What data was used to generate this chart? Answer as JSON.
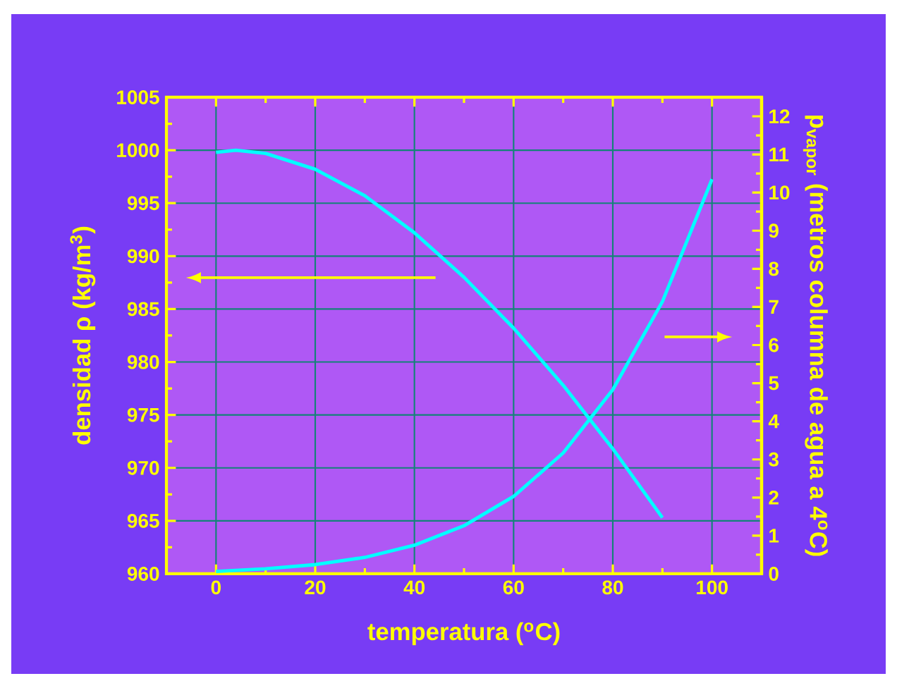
{
  "chart_data": {
    "type": "line",
    "xlabel": "temperatura ($^{o}$C)",
    "ylabel": "densidad ρ (kg/m$^{3}$)",
    "y2label": "p$_{vapor}$ (metros columna de agua a 4$^{o}$C)",
    "series": [
      {
        "color": "#00ffff",
        "x": [
          0,
          4,
          10,
          20,
          30,
          40,
          50,
          60,
          70,
          80,
          90
        ],
        "values": [
          999.8,
          1000,
          999.7,
          998.2,
          995.7,
          992.2,
          988.0,
          983.2,
          977.8,
          971.8,
          965.3
        ]
      },
      {
        "color": "#00ffff",
        "axis": "y2",
        "x": [
          0,
          10,
          20,
          30,
          40,
          50,
          60,
          70,
          80,
          90,
          100
        ],
        "values": [
          0.06,
          0.13,
          0.24,
          0.43,
          0.75,
          1.26,
          2.03,
          3.17,
          4.83,
          7.14,
          10.35
        ]
      }
    ],
    "xlim": [
      -10,
      110
    ],
    "xticks": [
      0,
      20,
      40,
      60,
      80,
      100
    ],
    "ylim": [
      960,
      1005
    ],
    "yticks": [
      960,
      965,
      970,
      975,
      980,
      985,
      990,
      995,
      1000,
      1005
    ],
    "y2lim": [
      0,
      12.5
    ],
    "y2ticks": [
      0,
      1,
      2,
      3,
      4,
      5,
      6,
      7,
      8,
      9,
      10,
      11,
      12
    ],
    "grid": true
  }
}
